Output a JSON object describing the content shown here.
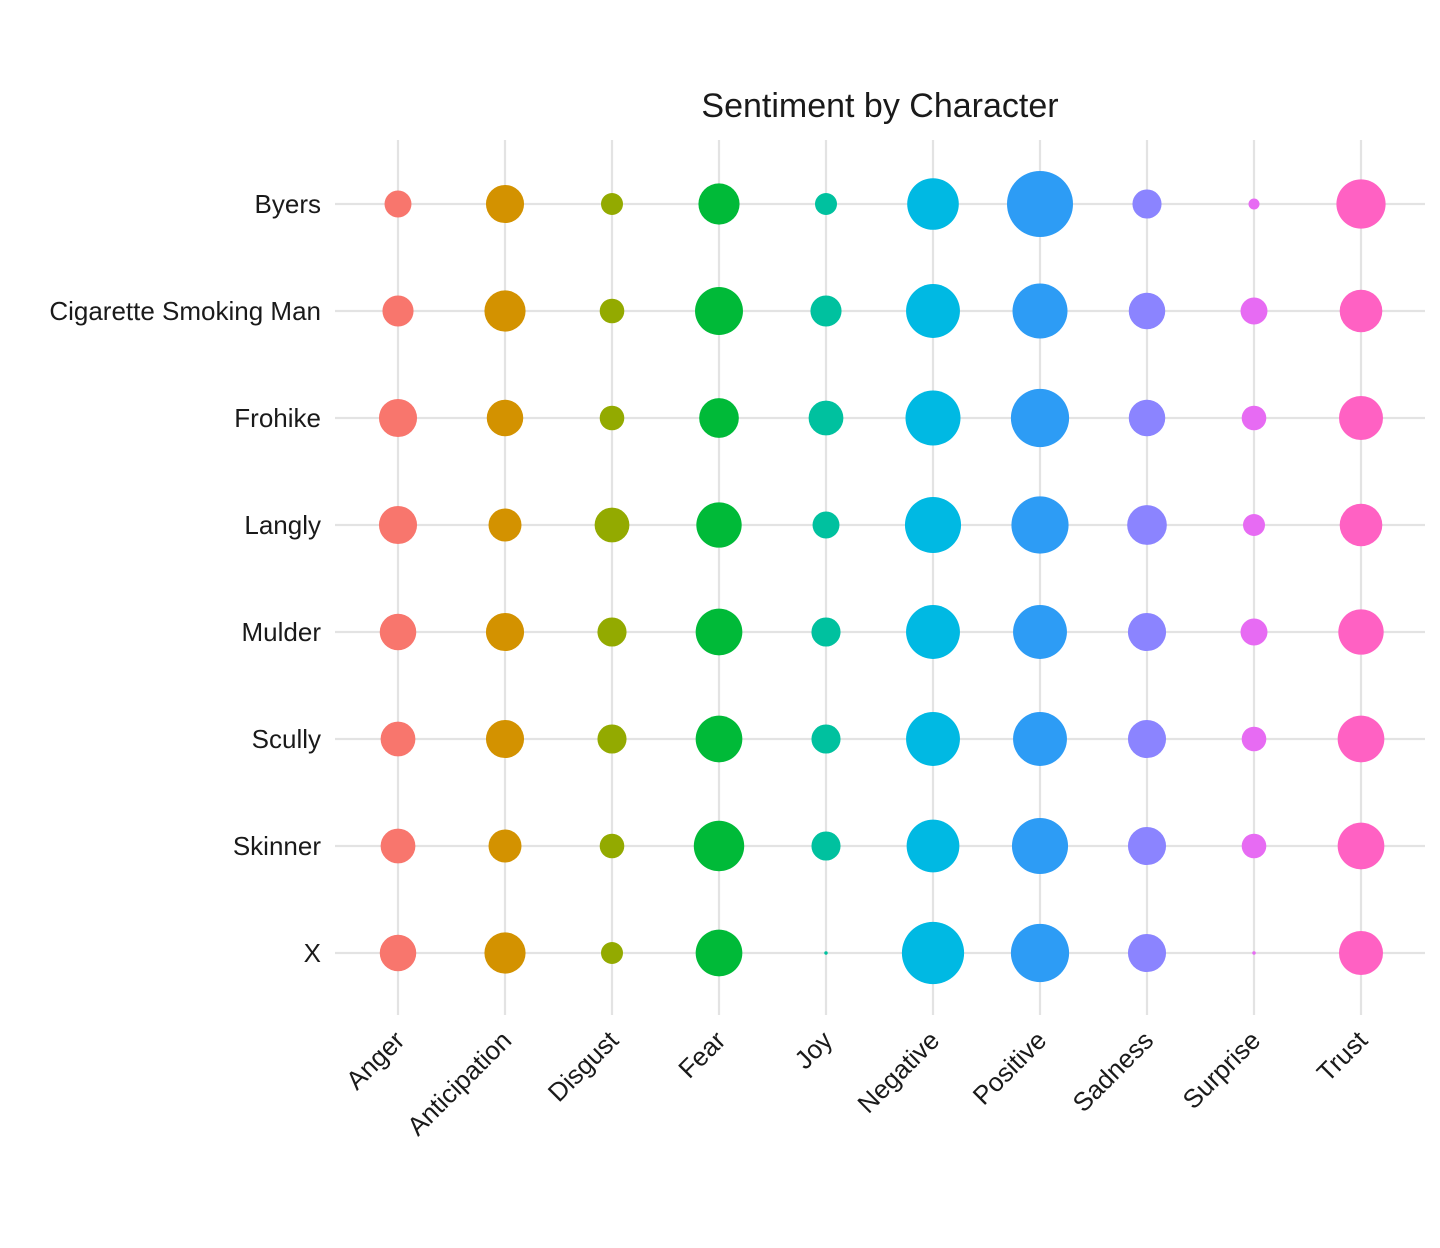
{
  "chart_data": {
    "type": "scatter",
    "title": "Sentiment by Character",
    "xlabel": "",
    "ylabel": "",
    "categories": [
      "Anger",
      "Anticipation",
      "Disgust",
      "Fear",
      "Joy",
      "Negative",
      "Positive",
      "Sadness",
      "Surprise",
      "Trust"
    ],
    "characters": [
      "Byers",
      "Cigarette Smoking Man",
      "Frohike",
      "Langly",
      "Mulder",
      "Scully",
      "Skinner",
      "X"
    ],
    "colors": [
      "#F8766D",
      "#D39200",
      "#93AA00",
      "#00BA38",
      "#00C19F",
      "#00B9E3",
      "#2D9CF5",
      "#8B84FF",
      "#E76BF3",
      "#FF61C3"
    ],
    "size_values": [
      [
        6,
        12,
        4,
        14,
        4,
        22,
        36,
        7,
        1,
        20
      ],
      [
        8,
        14,
        5,
        19,
        8,
        24,
        25,
        11,
        6,
        15
      ],
      [
        12,
        11,
        5,
        13,
        10,
        25,
        28,
        11,
        5,
        16
      ],
      [
        12,
        9,
        10,
        17,
        6,
        26,
        27,
        13,
        4,
        15
      ],
      [
        11,
        12,
        7,
        18,
        7,
        24,
        24,
        12,
        6,
        17
      ],
      [
        10,
        12,
        7,
        18,
        7,
        24,
        24,
        12,
        5,
        18
      ],
      [
        10,
        9,
        5,
        21,
        7,
        23,
        26,
        12,
        5,
        18
      ],
      [
        11,
        14,
        4,
        18,
        0.1,
        32,
        28,
        12,
        0.1,
        16
      ]
    ],
    "legend": "none",
    "grid": true
  }
}
